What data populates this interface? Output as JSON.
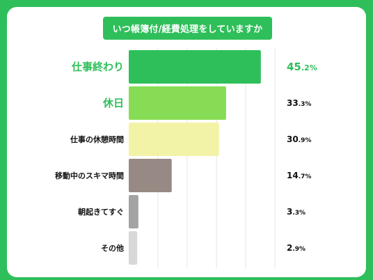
{
  "chart_data": {
    "type": "bar",
    "orientation": "horizontal",
    "title": "いつ帳簿付/経費処理をしていますか",
    "categories": [
      "仕事終わり",
      "休日",
      "仕事の休憩時間",
      "移動中のスキマ時間",
      "朝起きてすぐ",
      "その他"
    ],
    "values": [
      45.2,
      33.3,
      30.9,
      14.7,
      3.3,
      2.9
    ],
    "value_labels": [
      {
        "int": "45",
        "dec": ".2%"
      },
      {
        "int": "33",
        "dec": ".3%"
      },
      {
        "int": "30",
        "dec": ".9%"
      },
      {
        "int": "14",
        "dec": ".7%"
      },
      {
        "int": "3",
        "dec": ".3%"
      },
      {
        "int": "2",
        "dec": ".9%"
      }
    ],
    "bar_colors": [
      "#2fbf5a",
      "#86dd55",
      "#f3f3a8",
      "#978a84",
      "#a3a3a3",
      "#d8d8d8"
    ],
    "highlight_color": "#2fbf5a",
    "text_color": "#111111",
    "grid": true
  }
}
